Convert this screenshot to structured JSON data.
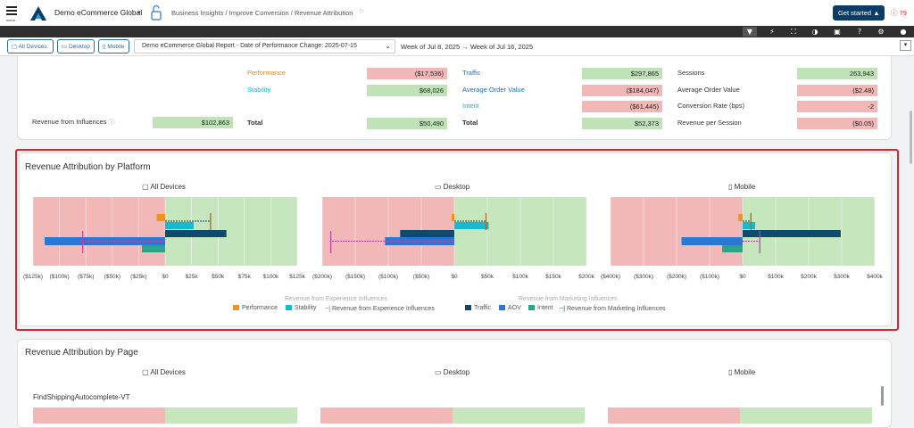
{
  "header": {
    "menu_label": "menu",
    "org_name": "Demo eCommerce Global",
    "breadcrumb": "Business Insights / Improve Conversion / Revenue Attribution",
    "get_started": "Get started",
    "alert_count": "79"
  },
  "toolbar": {
    "icons": [
      "filter-icon",
      "bolt-icon",
      "fullscreen-icon",
      "contrast-icon",
      "info-panel-icon",
      "help-icon",
      "gear-icon",
      "user-icon"
    ]
  },
  "filters": {
    "devices": [
      "All Devices",
      "Desktop",
      "Mobile"
    ],
    "report": "Demo eCommerce Global Report - Date of Performance Change: 2025-07-15",
    "week_range": "Week of Jul 8, 2025 → Week of Jul 16, 2025"
  },
  "summary": {
    "revenue_from_influences_label": "Revenue from Influences",
    "revenue_from_influences_value": "$102,863",
    "experience": [
      {
        "label": "Performance",
        "value": "($17,536)"
      },
      {
        "label": "Stability",
        "value": "$68,026"
      },
      {
        "label": "Total",
        "value": "$50,490"
      }
    ],
    "marketing": [
      {
        "label": "Traffic",
        "value": "$297,865"
      },
      {
        "label": "Average Order Value",
        "value": "($184,047)"
      },
      {
        "label": "Intent",
        "value": "($61,445)"
      },
      {
        "label": "Total",
        "value": "$52,373"
      }
    ],
    "metrics": [
      {
        "label": "Sessions",
        "value": "263,943"
      },
      {
        "label": "Average Order Value",
        "value": "($2.48)"
      },
      {
        "label": "Conversion Rate (bps)",
        "value": "-2"
      },
      {
        "label": "Revenue per Session",
        "value": "($0.05)"
      }
    ]
  },
  "platform_section": {
    "title": "Revenue Attribution by Platform",
    "legend": {
      "experience_title": "Revenue from Experience Influences",
      "marketing_title": "Revenue from Marketing Influences",
      "experience_items": [
        "Performance",
        "Stability",
        "Revenue from Experience Influences"
      ],
      "marketing_items": [
        "Traffic",
        "AOV",
        "Intent",
        "Revenue from Marketing Influences"
      ]
    }
  },
  "chart_data": [
    {
      "type": "bar",
      "title": "All Devices",
      "xlim": [
        -125000,
        125000
      ],
      "ticks": [
        "($125k)",
        "($100k)",
        "($75k)",
        "($50k)",
        "($25k)",
        "$0",
        "$25k",
        "$50k",
        "$75k",
        "$100k",
        "$125k"
      ],
      "series": [
        {
          "name": "Performance",
          "values": [
            -8000
          ]
        },
        {
          "name": "Stability",
          "values": [
            27000
          ]
        },
        {
          "name": "Revenue from Experience Influences",
          "values": [
            43000
          ]
        },
        {
          "name": "Traffic",
          "values": [
            58000
          ]
        },
        {
          "name": "AOV",
          "values": [
            -114000
          ]
        },
        {
          "name": "Intent",
          "values": [
            -22000
          ]
        },
        {
          "name": "Revenue from Marketing Influences",
          "values": [
            -78000
          ]
        }
      ]
    },
    {
      "type": "bar",
      "title": "Desktop",
      "xlim": [
        -200000,
        200000
      ],
      "ticks": [
        "($200k)",
        "($150k)",
        "($100k)",
        "($50k)",
        "$0",
        "$50k",
        "$100k",
        "$150k",
        "$200k"
      ],
      "series": [
        {
          "name": "Performance",
          "values": [
            -4000
          ]
        },
        {
          "name": "Stability",
          "values": [
            52000
          ]
        },
        {
          "name": "Revenue from Experience Influences",
          "values": [
            48000
          ]
        },
        {
          "name": "Traffic",
          "values": [
            -82000
          ]
        },
        {
          "name": "AOV",
          "values": [
            -105000
          ]
        },
        {
          "name": "Intent",
          "values": [
            0
          ]
        },
        {
          "name": "Revenue from Marketing Influences",
          "values": [
            -187000
          ]
        }
      ]
    },
    {
      "type": "bar",
      "title": "Mobile",
      "xlim": [
        -400000,
        400000
      ],
      "ticks": [
        "($400k)",
        "($300k)",
        "($200k)",
        "($100k)",
        "$0",
        "$100k",
        "$200k",
        "$300k",
        "$400k"
      ],
      "series": [
        {
          "name": "Performance",
          "values": [
            -13000
          ]
        },
        {
          "name": "Stability",
          "values": [
            38000
          ]
        },
        {
          "name": "Revenue from Experience Influences",
          "values": [
            25000
          ]
        },
        {
          "name": "Traffic",
          "values": [
            297000
          ]
        },
        {
          "name": "AOV",
          "values": [
            -185000
          ]
        },
        {
          "name": "Intent",
          "values": [
            -62000
          ]
        },
        {
          "name": "Revenue from Marketing Influences",
          "values": [
            52000
          ]
        }
      ]
    }
  ],
  "page_section": {
    "title": "Revenue Attribution by Page",
    "platforms": [
      "All Devices",
      "Desktop",
      "Mobile"
    ],
    "first_page": "FindShippingAutocomplete-VT"
  },
  "colors": {
    "performance": "#f0921e",
    "stability": "#18b9cf",
    "traffic": "#0d4a6e",
    "aov": "#2a78d6",
    "intent": "#2aa58a",
    "negative_bg": "#f2b8b8",
    "positive_bg": "#c6e6be",
    "highlight_border": "#d9262e"
  }
}
